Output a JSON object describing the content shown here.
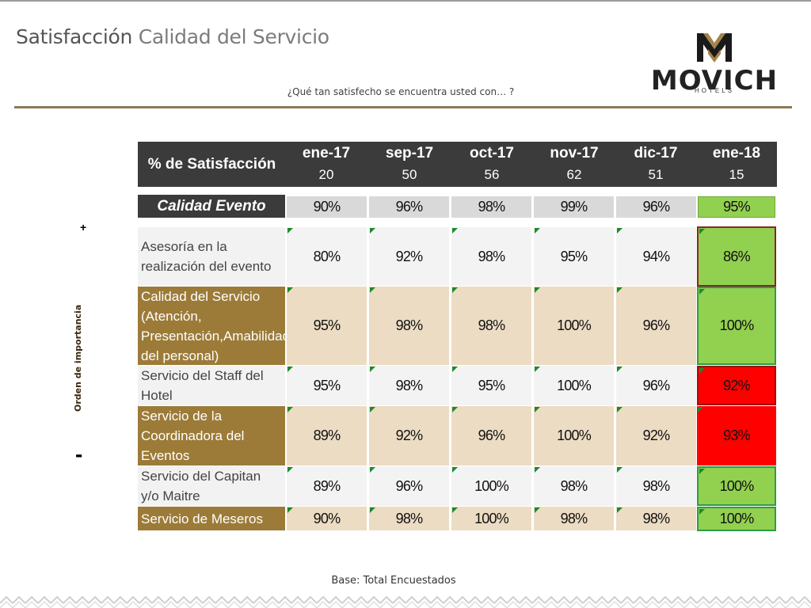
{
  "title": {
    "first": "Satisfacción",
    "second": "Calidad del Servicio"
  },
  "subtitle": "¿Qué tan satisfecho se encuentra usted con… ?",
  "logo": {
    "word": "MOVICH",
    "sub": "HOTELS"
  },
  "axis": {
    "plus": "+",
    "minus": "-",
    "label": "Orden de importancia"
  },
  "table": {
    "header_label": "% de Satisfacción",
    "columns": [
      {
        "month": "ene-17",
        "n": "20"
      },
      {
        "month": "sep-17",
        "n": "50"
      },
      {
        "month": "oct-17",
        "n": "56"
      },
      {
        "month": "nov-17",
        "n": "62"
      },
      {
        "month": "dic-17",
        "n": "51"
      },
      {
        "month": "ene-18",
        "n": "15"
      }
    ],
    "event": {
      "label": "Calidad Evento",
      "values": [
        "90%",
        "96%",
        "98%",
        "99%",
        "96%",
        "95%"
      ]
    },
    "rows": [
      {
        "label": "Asesoría en la realización del evento",
        "values": [
          "80%",
          "92%",
          "98%",
          "95%",
          "94%",
          "86%"
        ],
        "last_status": "green-dark-border"
      },
      {
        "label": "Calidad del Servicio (Atención, Presentación,Amabilidad del personal)",
        "values": [
          "95%",
          "98%",
          "98%",
          "100%",
          "96%",
          "100%"
        ],
        "last_status": "green"
      },
      {
        "label": "Servicio del Staff del Hotel",
        "values": [
          "95%",
          "98%",
          "95%",
          "100%",
          "96%",
          "92%"
        ],
        "last_status": "red"
      },
      {
        "label": "Servicio de la Coordinadora del Eventos",
        "values": [
          "89%",
          "92%",
          "96%",
          "100%",
          "92%",
          "93%"
        ],
        "last_status": "red"
      },
      {
        "label": "Servicio del Capitan y/o Maitre",
        "values": [
          "89%",
          "96%",
          "100%",
          "98%",
          "98%",
          "100%"
        ],
        "last_status": "green"
      },
      {
        "label": "Servicio de Meseros",
        "values": [
          "90%",
          "98%",
          "100%",
          "98%",
          "98%",
          "100%"
        ],
        "last_status": "green"
      }
    ]
  },
  "footer": "Base: Total Encuestados",
  "colors": {
    "header": "#3b3b3b",
    "gold": "#9c7b38",
    "tan": "#ecdcc3",
    "green": "#92d050",
    "red": "#ff0000"
  }
}
